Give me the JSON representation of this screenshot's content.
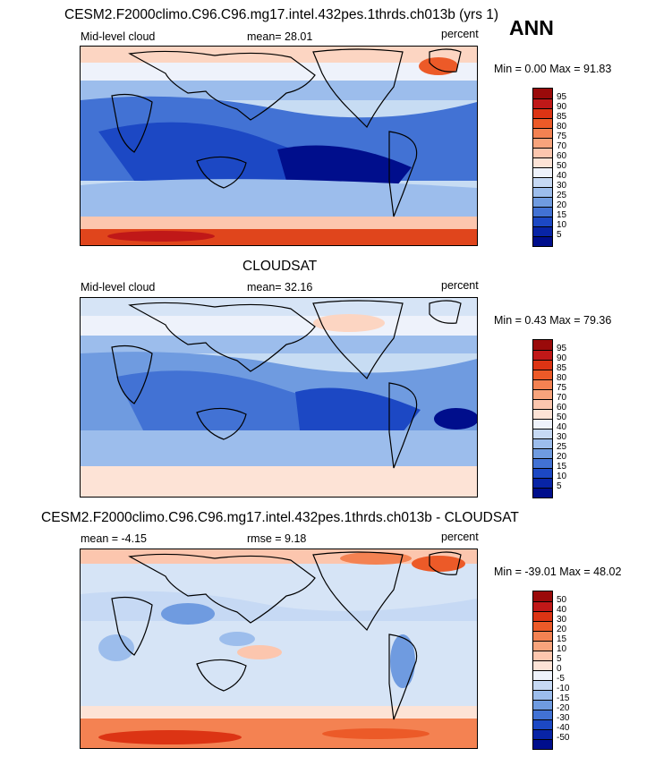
{
  "season": "ANN",
  "panels": [
    {
      "title": "CESM2.F2000climo.C96.C96.mg17.intel.432pes.1thrds.ch013b (yrs 1)",
      "left_label": "Mid-level cloud",
      "stat_text": "mean=  28.01",
      "units": "percent",
      "minmax": "Min =  0.00 Max =  91.83",
      "colorbar": {
        "labels": [
          "95",
          "90",
          "85",
          "80",
          "75",
          "70",
          "60",
          "50",
          "40",
          "30",
          "25",
          "20",
          "15",
          "10",
          "5"
        ],
        "colors": [
          "#9a0a0a",
          "#c01818",
          "#dc3414",
          "#ec5a28",
          "#f48252",
          "#f8a47c",
          "#fcc6ae",
          "#fde3d6",
          "#eef2fb",
          "#c6d9f4",
          "#9cbdec",
          "#6f9be0",
          "#4272d4",
          "#1c48c4",
          "#0824a6",
          "#000e8c"
        ]
      }
    },
    {
      "title": "CLOUDSAT",
      "left_label": "Mid-level cloud",
      "stat_text": "mean=  32.16",
      "units": "percent",
      "minmax": "Min =  0.43 Max =  79.36",
      "colorbar": {
        "labels": [
          "95",
          "90",
          "85",
          "80",
          "75",
          "70",
          "60",
          "50",
          "40",
          "30",
          "25",
          "20",
          "15",
          "10",
          "5"
        ],
        "colors": [
          "#9a0a0a",
          "#c01818",
          "#dc3414",
          "#ec5a28",
          "#f48252",
          "#f8a47c",
          "#fcc6ae",
          "#fde3d6",
          "#eef2fb",
          "#c6d9f4",
          "#9cbdec",
          "#6f9be0",
          "#4272d4",
          "#1c48c4",
          "#0824a6",
          "#000e8c"
        ]
      }
    },
    {
      "title": "CESM2.F2000climo.C96.C96.mg17.intel.432pes.1thrds.ch013b - CLOUDSAT",
      "left_label": "mean =  -4.15",
      "stat_text": "rmse =   9.18",
      "units": "percent",
      "minmax": "Min = -39.01 Max =  48.02",
      "colorbar": {
        "labels": [
          "50",
          "40",
          "30",
          "20",
          "15",
          "10",
          "5",
          "0",
          "-5",
          "-10",
          "-15",
          "-20",
          "-30",
          "-40",
          "-50"
        ],
        "colors": [
          "#9a0a0a",
          "#c01818",
          "#dc3414",
          "#ec5a28",
          "#f48252",
          "#f8a47c",
          "#fcc6ae",
          "#fde3d6",
          "#eef2fb",
          "#c6d9f4",
          "#9cbdec",
          "#6f9be0",
          "#4272d4",
          "#1c48c4",
          "#0824a6",
          "#000e8c"
        ]
      }
    }
  ]
}
